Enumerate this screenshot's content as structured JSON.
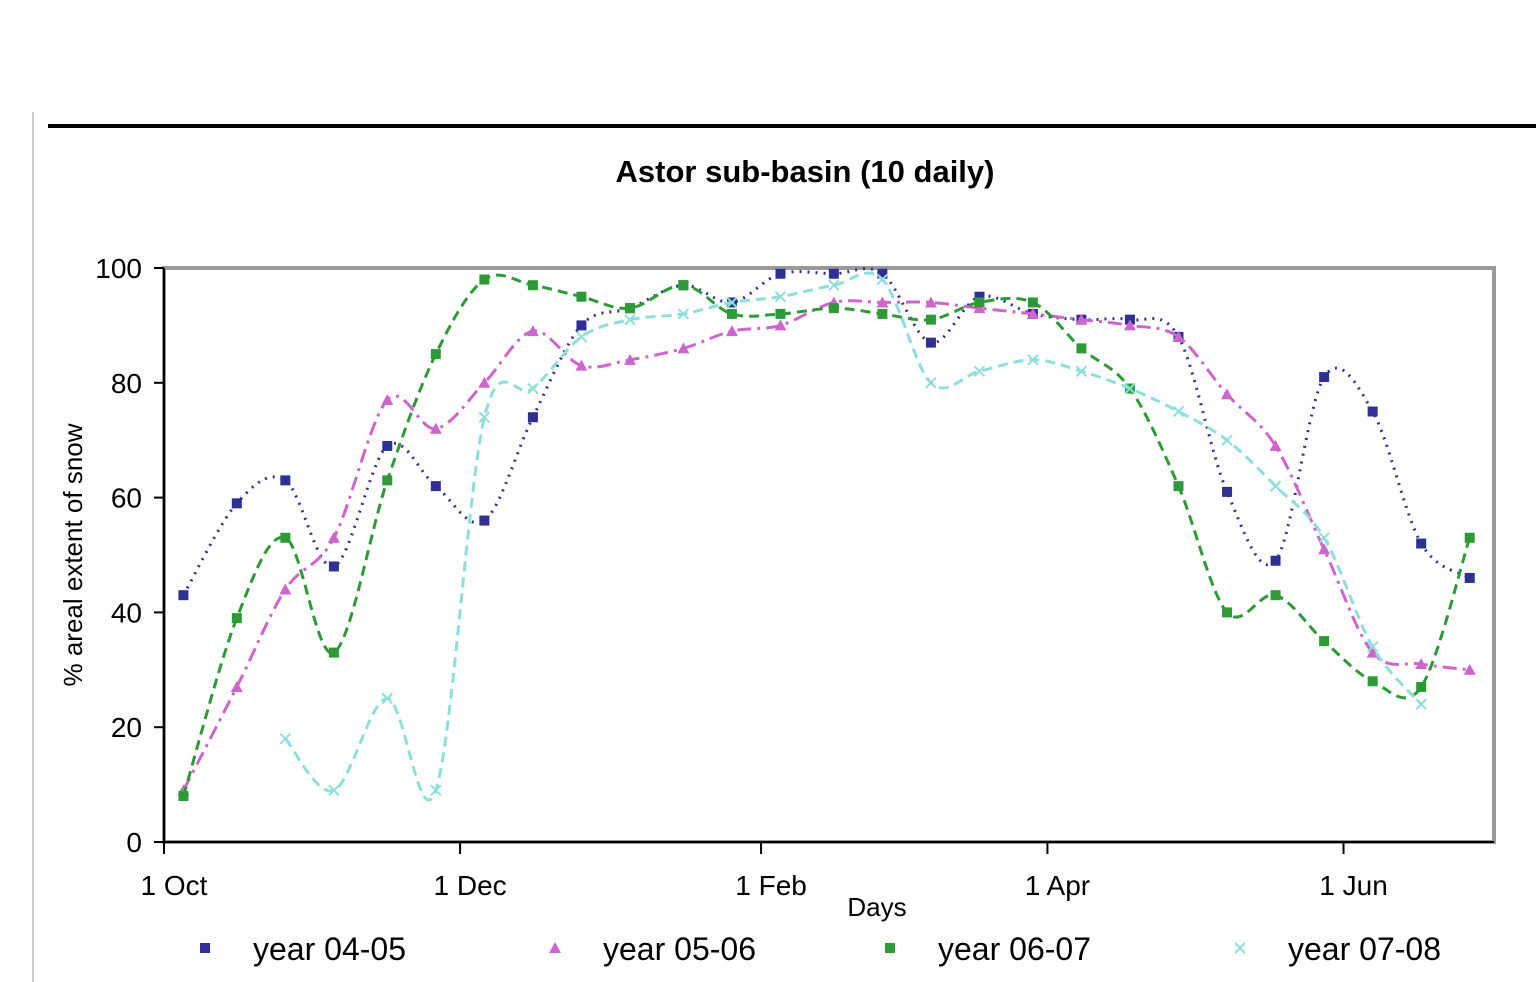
{
  "chart_data": {
    "type": "line",
    "title": "Astor sub-basin (10 daily)",
    "xlabel": "Days",
    "ylabel": "% areal extent of snow",
    "ylim": [
      0,
      100
    ],
    "yticks": [
      0,
      20,
      40,
      60,
      80,
      100
    ],
    "xticks": [
      {
        "x": 1,
        "label": "1 Oct"
      },
      {
        "x": 62,
        "label": "1 Dec"
      },
      {
        "x": 124,
        "label": "1 Feb"
      },
      {
        "x": 183,
        "label": "1 Apr"
      },
      {
        "x": 244,
        "label": "1 Jun"
      }
    ],
    "xlim": [
      1,
      275
    ],
    "grid": false,
    "legend_position": "bottom",
    "series": [
      {
        "name": "year 04-05",
        "color": "#2e3192",
        "marker": "square",
        "dash": "dot",
        "x": [
          5,
          16,
          26,
          36,
          47,
          57,
          67,
          77,
          87,
          97,
          108,
          118,
          128,
          139,
          149,
          159,
          169,
          180,
          190,
          200,
          210,
          220,
          230,
          240,
          250,
          260,
          270
        ],
        "y": [
          43,
          59,
          63,
          48,
          69,
          62,
          56,
          74,
          90,
          93,
          97,
          94,
          99,
          99,
          99,
          87,
          95,
          92,
          91,
          91,
          88,
          61,
          49,
          81,
          75,
          52,
          46
        ]
      },
      {
        "name": "year 05-06",
        "color": "#cc66cc",
        "marker": "triangle",
        "dash": "dashdot",
        "x": [
          5,
          16,
          26,
          36,
          47,
          57,
          67,
          77,
          87,
          97,
          108,
          118,
          128,
          139,
          149,
          159,
          169,
          180,
          190,
          200,
          210,
          220,
          230,
          240,
          250,
          260,
          270
        ],
        "y": [
          9,
          27,
          44,
          53,
          77,
          72,
          80,
          89,
          83,
          84,
          86,
          89,
          90,
          94,
          94,
          94,
          93,
          92,
          91,
          90,
          88,
          78,
          69,
          51,
          33,
          31,
          30
        ]
      },
      {
        "name": "year 06-07",
        "color": "#2e9a37",
        "marker": "square",
        "dash": "dash",
        "x": [
          5,
          16,
          26,
          36,
          47,
          57,
          67,
          77,
          87,
          97,
          108,
          118,
          128,
          139,
          149,
          159,
          169,
          180,
          190,
          200,
          210,
          220,
          230,
          240,
          250,
          260,
          270
        ],
        "y": [
          8,
          39,
          53,
          33,
          63,
          85,
          98,
          97,
          95,
          93,
          97,
          92,
          92,
          93,
          92,
          91,
          94,
          94,
          86,
          79,
          62,
          40,
          43,
          35,
          28,
          27,
          53
        ]
      },
      {
        "name": "year 07-08",
        "color": "#8fdfd9",
        "marker": "cross",
        "dash": "dash",
        "x": [
          26,
          36,
          47,
          57,
          67,
          77,
          87,
          97,
          108,
          118,
          128,
          139,
          149,
          159,
          169,
          180,
          190,
          200,
          210,
          220,
          230,
          240,
          250,
          260
        ],
        "y": [
          18,
          9,
          25,
          9,
          74,
          79,
          88,
          91,
          92,
          94,
          95,
          97,
          98,
          80,
          82,
          84,
          82,
          79,
          75,
          70,
          62,
          53,
          34,
          24
        ]
      }
    ]
  }
}
